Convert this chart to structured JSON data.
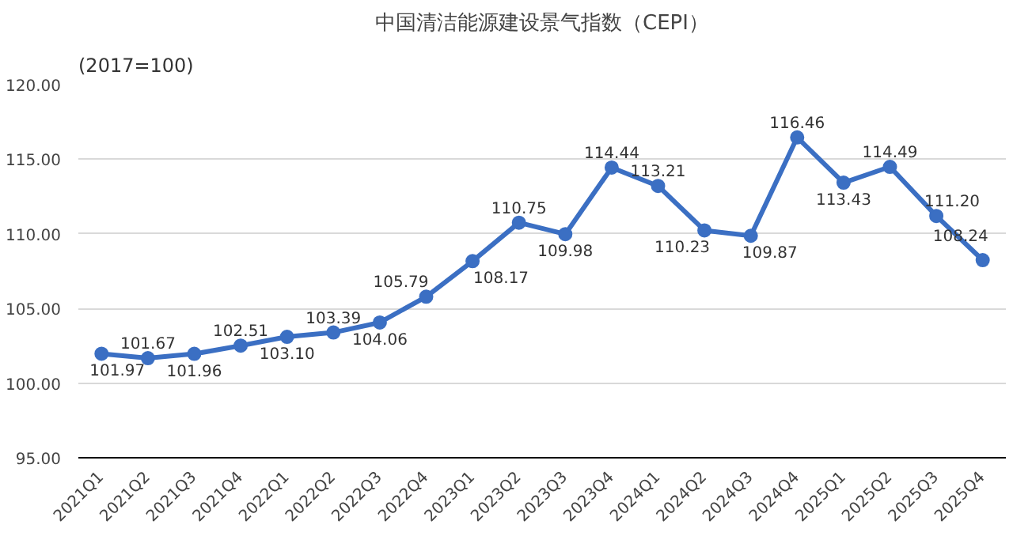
{
  "chart_data": {
    "type": "line",
    "title": "中国清洁能源建设景气指数（CEPI）",
    "annotations": [
      "(2017=100)"
    ],
    "categories": [
      "2021Q1",
      "2021Q2",
      "2021Q3",
      "2021Q4",
      "2022Q1",
      "2022Q2",
      "2022Q3",
      "2022Q4",
      "2023Q1",
      "2023Q2",
      "2023Q3",
      "2023Q4",
      "2024Q1",
      "2024Q2",
      "2024Q3",
      "2024Q4",
      "2025Q1",
      "2025Q2",
      "2025Q3",
      "2025Q4"
    ],
    "values": [
      101.97,
      101.67,
      101.96,
      102.51,
      103.1,
      103.39,
      104.06,
      105.79,
      108.17,
      110.75,
      109.98,
      114.44,
      113.21,
      110.23,
      109.87,
      116.46,
      113.43,
      114.49,
      111.2,
      108.24
    ],
    "value_labels": [
      "101.97",
      "101.67",
      "101.96",
      "102.51",
      "103.10",
      "103.39",
      "104.06",
      "105.79",
      "108.17",
      "110.75",
      "109.98",
      "114.44",
      "113.21",
      "110.23",
      "109.87",
      "116.46",
      "113.43",
      "114.49",
      "111.20",
      "108.24"
    ],
    "color": "#3b6fc3",
    "marker": "circle",
    "grid": "y",
    "ylim": [
      95,
      120
    ],
    "yticks": [
      {
        "value": 95,
        "label": "95.00"
      },
      {
        "value": 100,
        "label": "100.00"
      },
      {
        "value": 105,
        "label": "105.00"
      },
      {
        "value": 110,
        "label": "110.00"
      },
      {
        "value": 115,
        "label": "115.00"
      },
      {
        "value": 120,
        "label": "120.00"
      }
    ]
  }
}
